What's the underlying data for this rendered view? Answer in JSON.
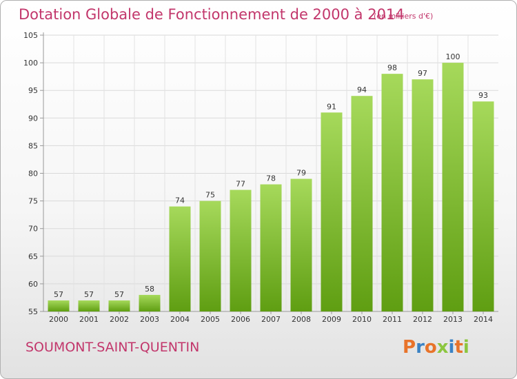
{
  "chart_data": {
    "type": "bar",
    "title": "Dotation Globale de Fonctionnement de 2000 à 2014",
    "subtitle": "(en milliers d'€)",
    "categories": [
      "2000",
      "2001",
      "2002",
      "2003",
      "2004",
      "2005",
      "2006",
      "2007",
      "2008",
      "2009",
      "2010",
      "2011",
      "2012",
      "2013",
      "2014"
    ],
    "values": [
      57,
      57,
      57,
      58,
      74,
      75,
      77,
      78,
      79,
      91,
      94,
      98,
      97,
      100,
      93
    ],
    "ylim": [
      55,
      105
    ],
    "yticks": [
      55,
      60,
      65,
      70,
      75,
      80,
      85,
      90,
      95,
      100,
      105
    ],
    "grid": true,
    "legend": "none",
    "bar_color_light": "#a6d95b",
    "bar_color_dark": "#5f9e12"
  },
  "footer": {
    "commune": "SOUMONT-SAINT-QUENTIN",
    "logo_letters": [
      "P",
      "r",
      "o",
      "x",
      "i",
      "t",
      "i"
    ],
    "logo_colors": [
      "#e8732a",
      "#3b82c4",
      "#e8732a",
      "#8cc63f",
      "#3b82c4",
      "#e8732a",
      "#8cc63f"
    ]
  }
}
